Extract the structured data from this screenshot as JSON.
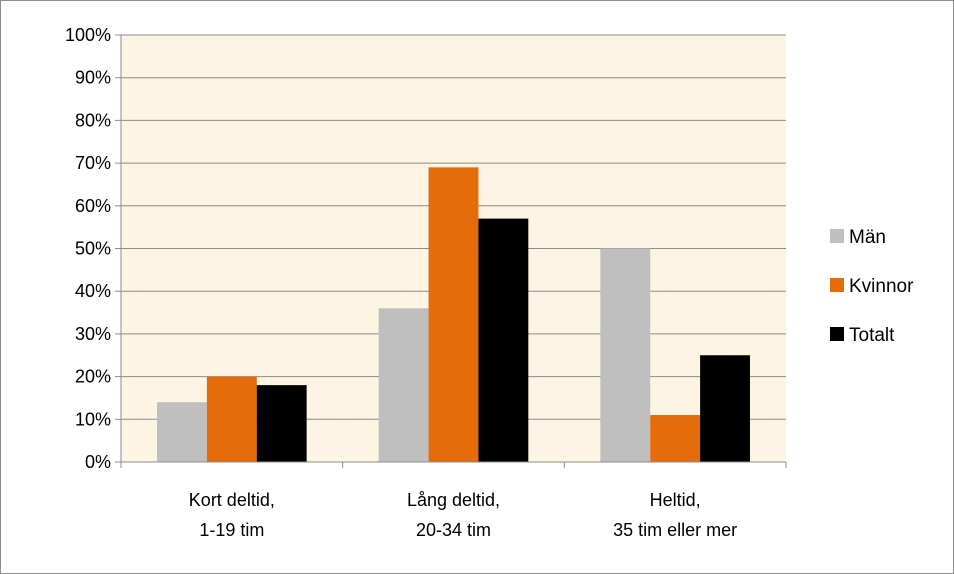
{
  "chart_data": {
    "type": "bar",
    "title": "",
    "xlabel": "",
    "ylabel": "",
    "ylim": [
      0,
      100
    ],
    "y_tick_step": 10,
    "y_tick_suffix": "%",
    "grid": true,
    "legend_position": "right",
    "plot_background": "#fdf4e3",
    "categories": [
      [
        "Kort deltid,",
        "1-19 tim"
      ],
      [
        "Lång deltid,",
        "20-34 tim"
      ],
      [
        "Heltid,",
        "35 tim eller mer"
      ]
    ],
    "series": [
      {
        "name": "Män",
        "color": "#bfbfbf",
        "values": [
          14,
          36,
          50
        ]
      },
      {
        "name": "Kvinnor",
        "color": "#e46c0a",
        "values": [
          20,
          69,
          11
        ]
      },
      {
        "name": "Totalt",
        "color": "#000000",
        "values": [
          18,
          57,
          25
        ]
      }
    ]
  }
}
